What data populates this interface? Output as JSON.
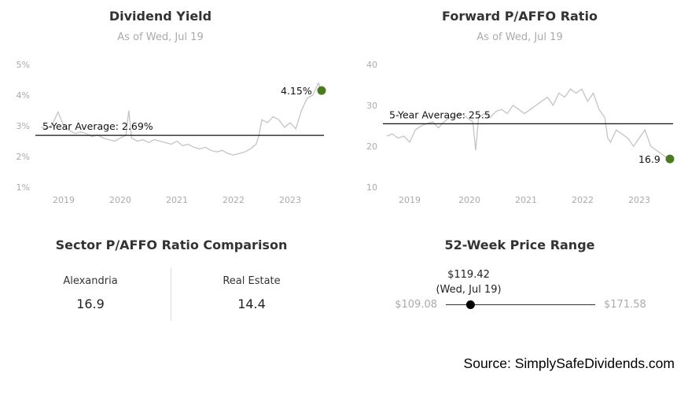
{
  "chart_data": [
    {
      "type": "line",
      "title": "Dividend Yield",
      "subtitle": "As of Wed, Jul 19",
      "x_ticks": [
        "2019",
        "2020",
        "2021",
        "2022",
        "2023"
      ],
      "y_ticks": [
        "5%",
        "4%",
        "3%",
        "2%",
        "1%"
      ],
      "ylim": [
        1,
        5
      ],
      "average_label": "5-Year Average: 2.69%",
      "average": 2.69,
      "current_label": "4.15%",
      "current": 4.15,
      "marker_color": "#4a7c1f",
      "series": [
        {
          "x": [
            2018.6,
            2018.7,
            2018.8,
            2018.9,
            2019.0,
            2019.1,
            2019.2,
            2019.3,
            2019.4,
            2019.5,
            2019.6,
            2019.7,
            2019.8,
            2019.9,
            2020.0,
            2020.1,
            2020.15,
            2020.2,
            2020.3,
            2020.4,
            2020.5,
            2020.6,
            2020.7,
            2020.8,
            2020.9,
            2021.0,
            2021.1,
            2021.2,
            2021.3,
            2021.4,
            2021.5,
            2021.6,
            2021.7,
            2021.8,
            2021.9,
            2022.0,
            2022.1,
            2022.2,
            2022.3,
            2022.4,
            2022.45,
            2022.5,
            2022.6,
            2022.7,
            2022.8,
            2022.9,
            2023.0,
            2023.1,
            2023.2,
            2023.3,
            2023.4,
            2023.5,
            2023.55
          ],
          "y": [
            2.95,
            2.9,
            3.05,
            3.45,
            3.0,
            2.85,
            2.75,
            2.8,
            2.75,
            2.65,
            2.7,
            2.6,
            2.55,
            2.5,
            2.6,
            2.7,
            3.5,
            2.6,
            2.5,
            2.55,
            2.45,
            2.55,
            2.5,
            2.45,
            2.4,
            2.5,
            2.35,
            2.4,
            2.3,
            2.25,
            2.3,
            2.2,
            2.15,
            2.2,
            2.1,
            2.05,
            2.1,
            2.15,
            2.25,
            2.4,
            2.7,
            3.2,
            3.1,
            3.3,
            3.2,
            2.95,
            3.1,
            2.9,
            3.5,
            3.9,
            4.0,
            4.4,
            4.15
          ]
        }
      ]
    },
    {
      "type": "line",
      "title": "Forward P/AFFO Ratio",
      "subtitle": "As of Wed, Jul 19",
      "x_ticks": [
        "2019",
        "2020",
        "2021",
        "2022",
        "2023"
      ],
      "y_ticks": [
        "40",
        "30",
        "20",
        "10"
      ],
      "ylim": [
        10,
        40
      ],
      "average_label": "5-Year Average: 25.5",
      "average": 25.5,
      "current_label": "16.9",
      "current": 16.9,
      "marker_color": "#4a7c1f",
      "series": [
        {
          "x": [
            2018.6,
            2018.7,
            2018.8,
            2018.9,
            2019.0,
            2019.1,
            2019.2,
            2019.3,
            2019.4,
            2019.5,
            2019.6,
            2019.7,
            2019.8,
            2019.9,
            2020.0,
            2020.1,
            2020.15,
            2020.2,
            2020.3,
            2020.4,
            2020.5,
            2020.6,
            2020.7,
            2020.8,
            2020.9,
            2021.0,
            2021.1,
            2021.2,
            2021.3,
            2021.4,
            2021.5,
            2021.6,
            2021.7,
            2021.8,
            2021.9,
            2022.0,
            2022.1,
            2022.2,
            2022.3,
            2022.4,
            2022.45,
            2022.5,
            2022.6,
            2022.7,
            2022.8,
            2022.9,
            2023.0,
            2023.1,
            2023.2,
            2023.3,
            2023.4,
            2023.5,
            2023.55
          ],
          "y": [
            22.5,
            23,
            22,
            22.5,
            21,
            24,
            25,
            25.5,
            26,
            24.5,
            26,
            27,
            27.5,
            28,
            27,
            26,
            19,
            27,
            28,
            27,
            28.5,
            29,
            28,
            30,
            29,
            28,
            29,
            30,
            31,
            32,
            30,
            33,
            32,
            34,
            33,
            34,
            31,
            33,
            29,
            27,
            22,
            21,
            24,
            23,
            22,
            20,
            22,
            24,
            20,
            19,
            18,
            17,
            16.9
          ]
        }
      ]
    }
  ],
  "sector": {
    "title": "Sector P/AFFO Ratio Comparison",
    "left_name": "Alexandria",
    "left_value": "16.9",
    "right_name": "Real Estate",
    "right_value": "14.4"
  },
  "range": {
    "title": "52-Week Price Range",
    "price": "$119.42",
    "date": "(Wed, Jul 19)",
    "low_label": "$109.08",
    "high_label": "$171.58",
    "low": 109.08,
    "high": 171.58,
    "current": 119.42
  },
  "source": "Source: SimplySafeDividends.com"
}
